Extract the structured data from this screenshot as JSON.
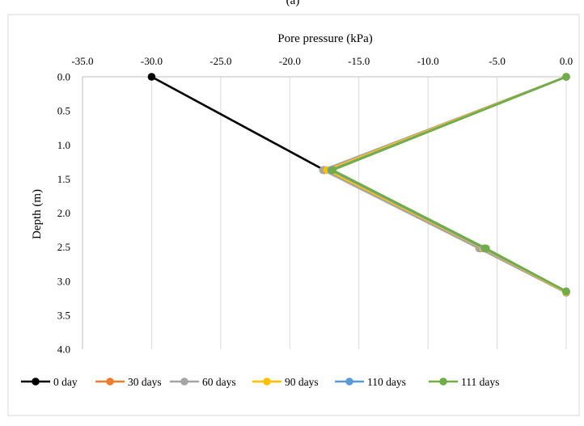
{
  "caption": "(a)",
  "chart_data": {
    "type": "line",
    "xlabel": "Pore pressure (kPa)",
    "ylabel": "Depth (m)",
    "xlim": [
      -35.0,
      0.0
    ],
    "ylim": [
      4.0,
      0.0
    ],
    "x_axis_position": "top",
    "y_axis_inverted": true,
    "x_ticks": [
      "-35.0",
      "-30.0",
      "-25.0",
      "-20.0",
      "-15.0",
      "-10.0",
      "-5.0",
      "0.0"
    ],
    "y_ticks": [
      "0.0",
      "0.5",
      "1.0",
      "1.5",
      "2.0",
      "2.5",
      "3.0",
      "3.5",
      "4.0"
    ],
    "grid": "vertical",
    "legend_position": "bottom",
    "series": [
      {
        "name": "0 day",
        "color": "#000000",
        "points": [
          [
            -30.0,
            0.0
          ],
          [
            -17.5,
            1.37
          ]
        ]
      },
      {
        "name": "30 days",
        "color": "#ED7D31",
        "points": [
          [
            0.0,
            0.0
          ],
          [
            -17.5,
            1.37
          ],
          [
            -6.2,
            2.52
          ],
          [
            0.0,
            3.17
          ]
        ]
      },
      {
        "name": "60 days",
        "color": "#A5A5A5",
        "points": [
          [
            0.0,
            0.0
          ],
          [
            -17.6,
            1.37
          ],
          [
            -6.3,
            2.52
          ],
          [
            0.0,
            3.17
          ]
        ]
      },
      {
        "name": "90 days",
        "color": "#FFC000",
        "points": [
          [
            0.0,
            0.0
          ],
          [
            -17.3,
            1.37
          ],
          [
            -6.0,
            2.52
          ],
          [
            0.0,
            3.16
          ]
        ]
      },
      {
        "name": "110 days",
        "color": "#5B9BD5",
        "points": [
          [
            0.0,
            0.0
          ],
          [
            -17.0,
            1.37
          ],
          [
            -5.9,
            2.52
          ],
          [
            0.0,
            3.15
          ]
        ]
      },
      {
        "name": "111 days",
        "color": "#70AD47",
        "points": [
          [
            0.0,
            0.0
          ],
          [
            -16.9,
            1.37
          ],
          [
            -5.8,
            2.52
          ],
          [
            0.0,
            3.15
          ]
        ]
      }
    ]
  }
}
